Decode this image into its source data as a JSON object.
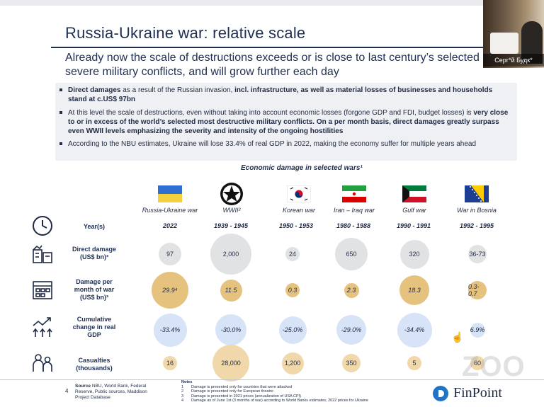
{
  "slide": {
    "title": "Russia-Ukraine war: relative scale",
    "subtitle": "Already now the scale of destructions exceeds or is close to last century’s selected most severe military conflicts, and will grow further each day",
    "bullets": [
      {
        "pre_bold": "Direct damages",
        "text_a": " as a result of the Russian invasion, ",
        "bold_b": "incl. infrastructure, as well as material losses of businesses and households stand at c.US$ 97bn",
        "text_c": ""
      },
      {
        "text_a": "At this level the scale of destructions, even without taking into account economic losses (forgone GDP and FDI, budget losses) is ",
        "bold_b": "very close to or in excess of the world’s selected most destructive military conflicts. On a per month basis, direct damages greatly surpass even WWII levels emphasizing the severity and intensity of the ongoing hostilities",
        "text_c": ""
      },
      {
        "text_a": "According to the NBU estimates, Ukraine will lose 33.4% of real GDP in 2022, making the economy suffer for multiple years ahead",
        "bold_b": "",
        "text_c": ""
      }
    ],
    "chart_title": "Economic damage in selected wars¹",
    "footer": {
      "page_number": "4",
      "source_label": "Source",
      "source_text": "NBU, World Bank, Federal Reserve, Public sources, Maddison Project Database",
      "notes_header": "Notes",
      "notes": [
        {
          "n": "1",
          "t": "Damage is presented only for countries that were attacked"
        },
        {
          "n": "2",
          "t": "Damage is presented only for European theatre"
        },
        {
          "n": "3",
          "t": "Damage is presented in 2021 prices (annualization of USA CPI)"
        },
        {
          "n": "4",
          "t": "Damage as of June 1st (3 months of war) according to World Banks estimates; 2022 prices for Ukraine"
        }
      ],
      "logo": "FinPoint"
    }
  },
  "chart_data": {
    "type": "table",
    "columns": [
      "Russia-Ukraine war",
      "WWII²",
      "Korean war",
      "Iran – Iraq war",
      "Gulf war",
      "War in Bosnia"
    ],
    "rows": [
      {
        "label": "Year(s)",
        "values": [
          "2022",
          "1939 - 1945",
          "1950 - 1953",
          "1980 - 1988",
          "1990 - 1991",
          "1992 - 1995"
        ]
      },
      {
        "label": "Direct damage (US$ bn)³",
        "values": [
          "97",
          "2,000",
          "24",
          "650",
          "320",
          "36-73"
        ]
      },
      {
        "label": "Damage per month of war (US$ bn)³",
        "values": [
          "29.9⁴",
          "11.5",
          "0.3",
          "2.3",
          "18.3",
          "0.3-0.7"
        ]
      },
      {
        "label": "Cumulative change in real GDP",
        "values": [
          "-33.4%",
          "-30.0%",
          "-25.0%",
          "-29.0%",
          "-34.4%",
          "6.9%"
        ]
      },
      {
        "label": "Casualties (thousands)",
        "values": [
          "16",
          "28,000",
          "1,200",
          "350",
          "5",
          "60"
        ]
      }
    ],
    "bubble_relative_size": {
      "direct_damage": [
        0.55,
        1.0,
        0.35,
        0.8,
        0.7,
        0.45
      ],
      "damage_per_month": [
        1.0,
        0.6,
        0.35,
        0.4,
        0.8,
        0.5
      ],
      "gdp_change": [
        0.9,
        0.85,
        0.75,
        0.8,
        0.95,
        0.4
      ],
      "casualties": [
        0.35,
        1.0,
        0.6,
        0.5,
        0.3,
        0.35
      ]
    },
    "colors": {
      "direct_damage": "#e1e2e4",
      "damage_per_month": "#e5c27e",
      "gdp_change": "#d7e3f7",
      "casualties": "#f1d8ab"
    }
  },
  "video_overlay": {
    "participant_name": "Серг*й Будк*"
  },
  "watermark": "ZOO"
}
